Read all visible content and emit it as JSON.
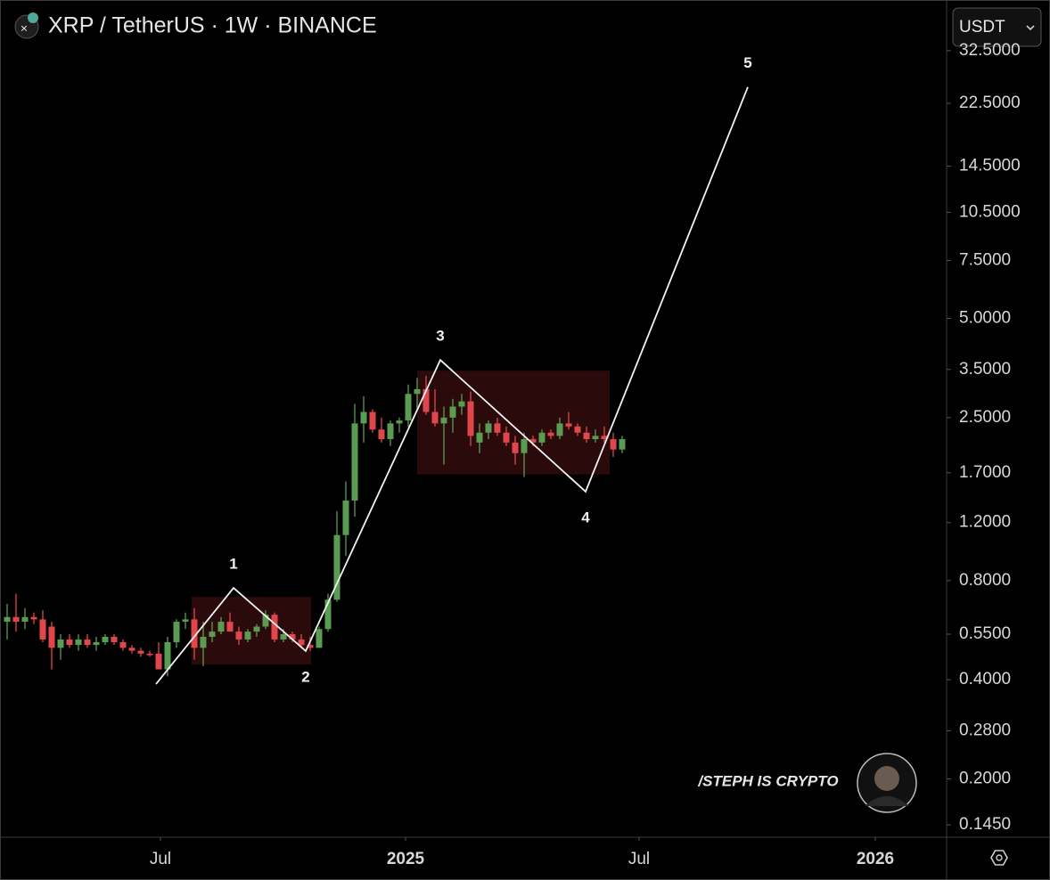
{
  "chart_data": {
    "type": "candlestick",
    "title": "XRP / TetherUS · 1W · BINANCE",
    "currency": "USDT",
    "watermark": "/STEPH IS CRYPTO",
    "log_scale": true,
    "up_color": "#5b9c53",
    "down_color": "#e0474c",
    "xlim": [
      -0.8,
      105.4
    ],
    "xticks": [
      {
        "value": 17.2,
        "label": "Jul"
      },
      {
        "value": 44.7,
        "label": "2025"
      },
      {
        "value": 70.9,
        "label": "Jul"
      },
      {
        "value": 97.4,
        "label": "2026"
      }
    ],
    "ylim": [
      0.133,
      44.9
    ],
    "yticks": [
      {
        "value": 0.145,
        "label": "0.1450"
      },
      {
        "value": 0.2,
        "label": "0.2000"
      },
      {
        "value": 0.28,
        "label": "0.2800"
      },
      {
        "value": 0.4,
        "label": "0.4000"
      },
      {
        "value": 0.55,
        "label": "0.5500"
      },
      {
        "value": 0.8,
        "label": "0.8000"
      },
      {
        "value": 1.2,
        "label": "1.2000"
      },
      {
        "value": 1.7,
        "label": "1.7000"
      },
      {
        "value": 2.5,
        "label": "2.5000"
      },
      {
        "value": 3.5,
        "label": "3.5000"
      },
      {
        "value": 5,
        "label": "5.0000"
      },
      {
        "value": 7.5,
        "label": "7.5000"
      },
      {
        "value": 10.5,
        "label": "10.5000"
      },
      {
        "value": 14.5,
        "label": "14.5000"
      },
      {
        "value": 22.5,
        "label": "22.5000"
      },
      {
        "value": 32.5,
        "label": "32.5000"
      }
    ],
    "open": [
      0.6,
      0.62,
      0.6,
      0.62,
      0.61,
      0.58,
      0.5,
      0.53,
      0.51,
      0.53,
      0.51,
      0.52,
      0.54,
      0.52,
      0.5,
      0.49,
      0.48,
      0.48,
      0.43,
      0.52,
      0.6,
      0.61,
      0.5,
      0.54,
      0.56,
      0.6,
      0.56,
      0.53,
      0.56,
      0.58,
      0.63,
      0.53,
      0.55,
      0.53,
      0.51,
      0.5,
      0.57,
      0.7,
      1.1,
      1.4,
      2.4,
      2.6,
      2.3,
      2.15,
      2.4,
      2.45,
      2.95,
      3.05,
      2.6,
      2.4,
      2.5,
      2.7,
      2.8,
      2.1,
      2.25,
      2.4,
      2.25,
      2.1,
      1.95,
      2.15,
      2.1,
      2.25,
      2.2,
      2.4,
      2.35,
      2.25,
      2.15,
      2.2,
      2.15,
      2.0
    ],
    "high": [
      0.68,
      0.73,
      0.66,
      0.64,
      0.65,
      0.6,
      0.55,
      0.55,
      0.55,
      0.55,
      0.54,
      0.55,
      0.55,
      0.53,
      0.51,
      0.5,
      0.49,
      0.52,
      0.54,
      0.61,
      0.64,
      0.66,
      0.6,
      0.6,
      0.62,
      0.64,
      0.58,
      0.57,
      0.59,
      0.65,
      0.64,
      0.57,
      0.56,
      0.55,
      0.54,
      0.58,
      0.73,
      1.3,
      1.6,
      2.75,
      2.9,
      2.65,
      2.5,
      2.45,
      2.5,
      3.15,
      3.3,
      3.35,
      3.05,
      2.7,
      2.85,
      2.95,
      3.0,
      2.4,
      2.45,
      2.5,
      2.35,
      2.2,
      2.25,
      2.2,
      2.3,
      2.3,
      2.5,
      2.6,
      2.4,
      2.35,
      2.3,
      2.35,
      2.25,
      2.2
    ],
    "low": [
      0.53,
      0.56,
      0.57,
      0.59,
      0.52,
      0.43,
      0.46,
      0.5,
      0.49,
      0.5,
      0.49,
      0.51,
      0.51,
      0.49,
      0.48,
      0.47,
      0.47,
      0.43,
      0.41,
      0.5,
      0.57,
      0.46,
      0.44,
      0.52,
      0.55,
      0.56,
      0.51,
      0.52,
      0.54,
      0.57,
      0.52,
      0.52,
      0.52,
      0.5,
      0.49,
      0.5,
      0.56,
      0.69,
      0.95,
      1.25,
      2.1,
      2.25,
      2.1,
      2.05,
      2.25,
      2.35,
      2.65,
      2.55,
      2.35,
      1.8,
      2.25,
      2.55,
      2.05,
      1.95,
      2.15,
      2.2,
      2.05,
      1.8,
      1.65,
      2.05,
      2.05,
      2.15,
      2.15,
      2.3,
      2.2,
      2.1,
      2.1,
      2.1,
      1.9,
      1.95
    ],
    "close": [
      0.62,
      0.6,
      0.62,
      0.61,
      0.53,
      0.5,
      0.53,
      0.51,
      0.53,
      0.51,
      0.52,
      0.54,
      0.52,
      0.5,
      0.49,
      0.48,
      0.475,
      0.43,
      0.52,
      0.6,
      0.61,
      0.5,
      0.54,
      0.56,
      0.6,
      0.56,
      0.53,
      0.56,
      0.58,
      0.63,
      0.53,
      0.55,
      0.53,
      0.51,
      0.5,
      0.57,
      0.7,
      1.1,
      1.4,
      2.4,
      2.6,
      2.3,
      2.15,
      2.4,
      2.45,
      2.95,
      3.05,
      2.6,
      2.4,
      2.5,
      2.7,
      2.8,
      2.2,
      2.25,
      2.4,
      2.25,
      2.1,
      1.95,
      2.15,
      2.1,
      2.25,
      2.2,
      2.4,
      2.35,
      2.25,
      2.15,
      2.2,
      2.15,
      2.0,
      2.15
    ],
    "zones": [
      {
        "x": [
          20.7,
          34.1
        ],
        "y": [
          0.445,
          0.714
        ]
      },
      {
        "x": [
          46,
          67.6
        ],
        "y": [
          1.68,
          3.47
        ]
      }
    ],
    "wave": {
      "x": [
        16.7,
        25.4,
        33.5,
        48.6,
        64.9,
        83.1
      ],
      "y": [
        0.388,
        0.76,
        0.489,
        3.74,
        1.49,
        25.2
      ],
      "labels": [
        null,
        "1",
        "2",
        "3",
        "4",
        "5"
      ]
    }
  }
}
